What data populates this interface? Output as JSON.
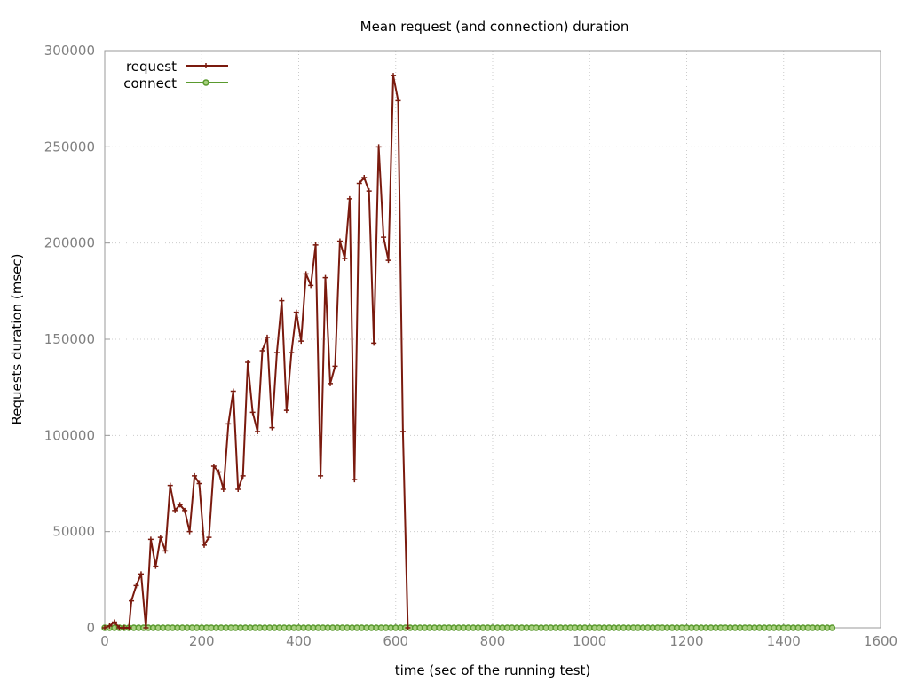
{
  "chart_data": {
    "type": "line",
    "title": "Mean request (and connection) duration",
    "xlabel": "time (sec of the running test)",
    "ylabel": "Requests duration (msec)",
    "xlim": [
      0,
      1600
    ],
    "ylim": [
      0,
      300000
    ],
    "x_ticks": [
      0,
      200,
      400,
      600,
      800,
      1000,
      1200,
      1400,
      1600
    ],
    "y_ticks": [
      0,
      50000,
      100000,
      150000,
      200000,
      250000,
      300000
    ],
    "grid": true,
    "legend_position": "top-left",
    "series": [
      {
        "name": "request",
        "color": "#7a1a0e",
        "marker": "plus",
        "x": [
          0,
          10,
          20,
          30,
          40,
          50,
          55,
          65,
          75,
          85,
          95,
          105,
          115,
          125,
          135,
          145,
          155,
          165,
          175,
          185,
          195,
          205,
          215,
          225,
          235,
          245,
          255,
          265,
          275,
          285,
          295,
          305,
          315,
          325,
          335,
          345,
          355,
          365,
          375,
          385,
          395,
          405,
          415,
          425,
          435,
          445,
          455,
          465,
          475,
          485,
          495,
          505,
          515,
          525,
          535,
          545,
          555,
          565,
          575,
          585,
          595,
          605,
          615,
          625
        ],
        "y": [
          0,
          1000,
          3000,
          0,
          0,
          0,
          14000,
          22000,
          28000,
          0,
          46000,
          32000,
          47000,
          40000,
          74000,
          61000,
          64000,
          61000,
          50000,
          79000,
          75000,
          43000,
          47000,
          84000,
          81000,
          72000,
          106000,
          123000,
          72000,
          79000,
          138000,
          112000,
          102000,
          144000,
          151000,
          104000,
          143000,
          170000,
          113000,
          143000,
          164000,
          149000,
          184000,
          178000,
          199000,
          79000,
          182000,
          127000,
          136000,
          201000,
          192000,
          223000,
          77000,
          231000,
          234000,
          227000,
          148000,
          250000,
          203000,
          191000,
          287000,
          274000,
          102000,
          0
        ]
      },
      {
        "name": "connect",
        "color": "#5a9a2e",
        "marker": "circle",
        "x_start": 0,
        "x_end": 1500,
        "x_step": 10,
        "value": 0
      }
    ]
  }
}
